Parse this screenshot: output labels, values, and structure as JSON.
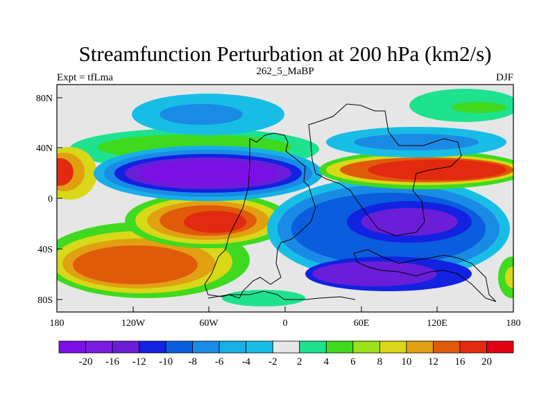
{
  "title": "Streamfunction Perturbation at 200 hPa (km2/s)",
  "left_label": "Expt = tfLma",
  "center_label": "262_5_MaBP",
  "right_label": "DJF",
  "x_ticks": [
    "180",
    "120W",
    "60W",
    "0",
    "60E",
    "120E",
    "180"
  ],
  "y_ticks": [
    "80N",
    "40N",
    "0",
    "40S",
    "80S"
  ],
  "colorbar": {
    "labels": [
      "-20",
      "-16",
      "-12",
      "-10",
      "-8",
      "-6",
      "-4",
      "-2",
      "2",
      "4",
      "6",
      "8",
      "10",
      "12",
      "16",
      "20"
    ],
    "colors": [
      "#7a10e6",
      "#7b1de0",
      "#6a1ed8",
      "#1222e0",
      "#0a5ddc",
      "#1a8be4",
      "#18aee6",
      "#18bde6",
      "#e6e6e6",
      "#1ee28e",
      "#3fd91f",
      "#9be01a",
      "#d8d818",
      "#e0a012",
      "#e05a0a",
      "#e22a10",
      "#e00010"
    ]
  },
  "chart_data": {
    "type": "heatmap",
    "x_range": [
      -180,
      180
    ],
    "y_range": [
      -90,
      90
    ],
    "units": "km2/s"
  }
}
